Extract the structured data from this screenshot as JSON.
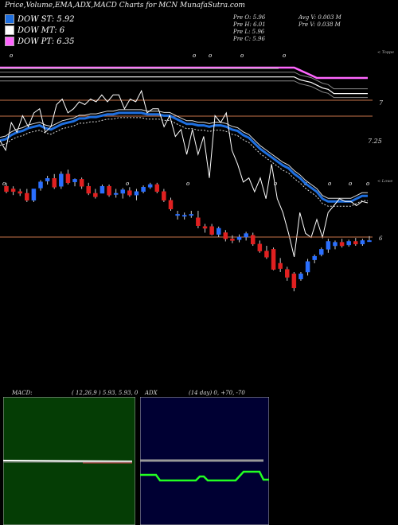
{
  "header": {
    "title": "Price,Volume,EMA,ADX,MACD Charts for MCN  MunafaSutra.com"
  },
  "legend": [
    {
      "label": "DOW ST: 5.92",
      "color": "#1e6fe0"
    },
    {
      "label": "DOW MT: 6",
      "color": "#ffffff"
    },
    {
      "label": "DOW PT: 6.35",
      "color": "#ff66ff"
    }
  ],
  "stats": {
    "prev_open": "Pre   O: 5.96",
    "prev_high": "Pre   H: 6.01",
    "prev_low": "Pre   L: 5.96",
    "prev_close": "Pre   C: 5.96",
    "avg_volume": "Avg V: 0.003  M",
    "prev_volume": "Pre   V: 0.038  M"
  },
  "labels": {
    "upper": "< Toppe",
    "lower": "< Lowe",
    "level_7": "7",
    "level_725": "7.25",
    "level_6": "6"
  },
  "macd": {
    "label": "MACD:",
    "params": "( 12,26,9 ) 5.93, 5.93, 0"
  },
  "adx": {
    "label": "ADX",
    "params": "(14  day) 0, +70, -70"
  },
  "chart_data": [
    {
      "type": "line",
      "title": "EMA",
      "series": [
        {
          "name": "DOW PT",
          "color": "#ff66ff"
        },
        {
          "name": "DOW ST",
          "color": "#1e6fe0"
        },
        {
          "name": "DOW MT",
          "color": "#ffffff"
        }
      ],
      "y_ticks": [
        "7",
        "7.25"
      ],
      "ema_slow": [
        7.18,
        7.18,
        7.18,
        7.18,
        7.18,
        7.18,
        7.18,
        7.18,
        7.18,
        7.18,
        7.18,
        7.18,
        7.18,
        7.18,
        7.18,
        7.18,
        7.18,
        7.18,
        7.18,
        7.18,
        7.18,
        7.18,
        7.18,
        7.18,
        7.18,
        7.18,
        7.18,
        7.18,
        7.18,
        7.18,
        7.18,
        7.18,
        7.18,
        7.18,
        7.18,
        7.18,
        7.18,
        7.18,
        7.18,
        7.18,
        7.18,
        7.18,
        7.18,
        7.18,
        7.18,
        7.18,
        7.18,
        7.18,
        7.18,
        7.18,
        7.18,
        7.18,
        7.18,
        7.16,
        7.15,
        7.14,
        7.12,
        7.1,
        7.09,
        7.06,
        7.06,
        7.06,
        7.06,
        7.06,
        7.06,
        7.06
      ],
      "ema_fast": [
        6.72,
        6.73,
        6.76,
        6.78,
        6.79,
        6.81,
        6.82,
        6.83,
        6.81,
        6.8,
        6.82,
        6.84,
        6.85,
        6.86,
        6.88,
        6.88,
        6.89,
        6.89,
        6.9,
        6.91,
        6.91,
        6.92,
        6.92,
        6.92,
        6.92,
        6.92,
        6.91,
        6.91,
        6.91,
        6.9,
        6.9,
        6.88,
        6.86,
        6.84,
        6.84,
        6.83,
        6.83,
        6.82,
        6.83,
        6.83,
        6.82,
        6.8,
        6.79,
        6.76,
        6.74,
        6.7,
        6.66,
        6.63,
        6.6,
        6.57,
        6.54,
        6.52,
        6.48,
        6.45,
        6.41,
        6.38,
        6.35,
        6.3,
        6.28,
        6.28,
        6.28,
        6.28,
        6.28,
        6.3,
        6.32,
        6.32
      ],
      "price_line": [
        6.72,
        6.65,
        6.85,
        6.78,
        6.9,
        6.82,
        6.92,
        6.95,
        6.78,
        6.82,
        6.98,
        7.02,
        6.92,
        6.95,
        7.0,
        6.98,
        7.02,
        7.0,
        7.05,
        7.0,
        7.05,
        7.05,
        6.95,
        7.02,
        7.0,
        7.08,
        6.92,
        6.95,
        6.95,
        6.82,
        6.9,
        6.75,
        6.8,
        6.62,
        6.8,
        6.62,
        6.75,
        6.45,
        6.9,
        6.85,
        6.92,
        6.65,
        6.55,
        6.42,
        6.45,
        6.35,
        6.45,
        6.3,
        6.55,
        6.3,
        6.2,
        6.05,
        5.88,
        6.2,
        6.05,
        6.02,
        6.15,
        6.02,
        6.2,
        6.25,
        6.3,
        6.28,
        6.28,
        6.25,
        6.28,
        6.27
      ]
    },
    {
      "type": "candlestick",
      "title": "Price",
      "y_ticks": [
        "6"
      ],
      "candles": [
        {
          "o": 6.58,
          "h": 6.62,
          "l": 6.5,
          "c": 6.52
        },
        {
          "o": 6.55,
          "h": 6.58,
          "l": 6.48,
          "c": 6.52
        },
        {
          "o": 6.52,
          "h": 6.55,
          "l": 6.47,
          "c": 6.5
        },
        {
          "o": 6.5,
          "h": 6.55,
          "l": 6.4,
          "c": 6.42
        },
        {
          "o": 6.42,
          "h": 6.55,
          "l": 6.4,
          "c": 6.55
        },
        {
          "o": 6.56,
          "h": 6.65,
          "l": 6.53,
          "c": 6.63
        },
        {
          "o": 6.64,
          "h": 6.7,
          "l": 6.6,
          "c": 6.67
        },
        {
          "o": 6.67,
          "h": 6.72,
          "l": 6.55,
          "c": 6.57
        },
        {
          "o": 6.58,
          "h": 6.75,
          "l": 6.55,
          "c": 6.72
        },
        {
          "o": 6.72,
          "h": 6.77,
          "l": 6.6,
          "c": 6.62
        },
        {
          "o": 6.63,
          "h": 6.67,
          "l": 6.58,
          "c": 6.66
        },
        {
          "o": 6.66,
          "h": 6.68,
          "l": 6.55,
          "c": 6.58
        },
        {
          "o": 6.58,
          "h": 6.62,
          "l": 6.48,
          "c": 6.5
        },
        {
          "o": 6.5,
          "h": 6.55,
          "l": 6.44,
          "c": 6.46
        },
        {
          "o": 6.5,
          "h": 6.6,
          "l": 6.5,
          "c": 6.58
        },
        {
          "o": 6.58,
          "h": 6.6,
          "l": 6.46,
          "c": 6.48
        },
        {
          "o": 6.5,
          "h": 6.55,
          "l": 6.45,
          "c": 6.5
        },
        {
          "o": 6.5,
          "h": 6.56,
          "l": 6.44,
          "c": 6.54
        },
        {
          "o": 6.53,
          "h": 6.57,
          "l": 6.46,
          "c": 6.48
        },
        {
          "o": 6.48,
          "h": 6.55,
          "l": 6.42,
          "c": 6.52
        },
        {
          "o": 6.52,
          "h": 6.59,
          "l": 6.5,
          "c": 6.57
        },
        {
          "o": 6.57,
          "h": 6.62,
          "l": 6.55,
          "c": 6.6
        },
        {
          "o": 6.6,
          "h": 6.62,
          "l": 6.5,
          "c": 6.52
        },
        {
          "o": 6.52,
          "h": 6.55,
          "l": 6.4,
          "c": 6.42
        },
        {
          "o": 6.42,
          "h": 6.45,
          "l": 6.3,
          "c": 6.32
        },
        {
          "o": 6.25,
          "h": 6.3,
          "l": 6.2,
          "c": 6.26
        },
        {
          "o": 6.24,
          "h": 6.28,
          "l": 6.2,
          "c": 6.25
        },
        {
          "o": 6.25,
          "h": 6.3,
          "l": 6.22,
          "c": 6.26
        },
        {
          "o": 6.22,
          "h": 6.3,
          "l": 6.1,
          "c": 6.13
        },
        {
          "o": 6.12,
          "h": 6.15,
          "l": 6.05,
          "c": 6.1
        },
        {
          "o": 6.12,
          "h": 6.15,
          "l": 6.02,
          "c": 6.03
        },
        {
          "o": 6.03,
          "h": 6.12,
          "l": 6.0,
          "c": 6.1
        },
        {
          "o": 6.05,
          "h": 6.08,
          "l": 5.95,
          "c": 5.98
        },
        {
          "o": 5.98,
          "h": 6.02,
          "l": 5.93,
          "c": 5.96
        },
        {
          "o": 5.97,
          "h": 6.03,
          "l": 5.94,
          "c": 6.0
        },
        {
          "o": 6.0,
          "h": 6.06,
          "l": 5.96,
          "c": 6.04
        },
        {
          "o": 6.02,
          "h": 6.05,
          "l": 5.9,
          "c": 5.92
        },
        {
          "o": 5.92,
          "h": 5.96,
          "l": 5.82,
          "c": 5.84
        },
        {
          "o": 5.84,
          "h": 5.9,
          "l": 5.75,
          "c": 5.77
        },
        {
          "o": 5.86,
          "h": 5.88,
          "l": 5.62,
          "c": 5.63
        },
        {
          "o": 5.7,
          "h": 5.76,
          "l": 5.6,
          "c": 5.64
        },
        {
          "o": 5.63,
          "h": 5.66,
          "l": 5.5,
          "c": 5.54
        },
        {
          "o": 5.58,
          "h": 5.6,
          "l": 5.38,
          "c": 5.42
        },
        {
          "o": 5.52,
          "h": 5.6,
          "l": 5.5,
          "c": 5.58
        },
        {
          "o": 5.6,
          "h": 5.75,
          "l": 5.56,
          "c": 5.72
        },
        {
          "o": 5.74,
          "h": 5.8,
          "l": 5.7,
          "c": 5.78
        },
        {
          "o": 5.8,
          "h": 5.88,
          "l": 5.78,
          "c": 5.86
        },
        {
          "o": 5.86,
          "h": 5.98,
          "l": 5.82,
          "c": 5.95
        },
        {
          "o": 5.9,
          "h": 5.96,
          "l": 5.86,
          "c": 5.94
        },
        {
          "o": 5.94,
          "h": 5.98,
          "l": 5.88,
          "c": 5.9
        },
        {
          "o": 5.91,
          "h": 5.97,
          "l": 5.89,
          "c": 5.95
        },
        {
          "o": 5.95,
          "h": 5.99,
          "l": 5.9,
          "c": 5.92
        },
        {
          "o": 5.92,
          "h": 5.98,
          "l": 5.9,
          "c": 5.96
        },
        {
          "o": 5.96,
          "h": 6.01,
          "l": 5.96,
          "c": 5.96
        }
      ]
    },
    {
      "type": "line",
      "title": "MACD",
      "series": [
        {
          "name": "MACD"
        }
      ],
      "values": [
        0,
        0,
        0,
        0
      ]
    },
    {
      "type": "line",
      "title": "ADX",
      "series": [
        {
          "name": "ADX"
        }
      ],
      "values": [
        0,
        0,
        0,
        0,
        0,
        0
      ]
    }
  ]
}
